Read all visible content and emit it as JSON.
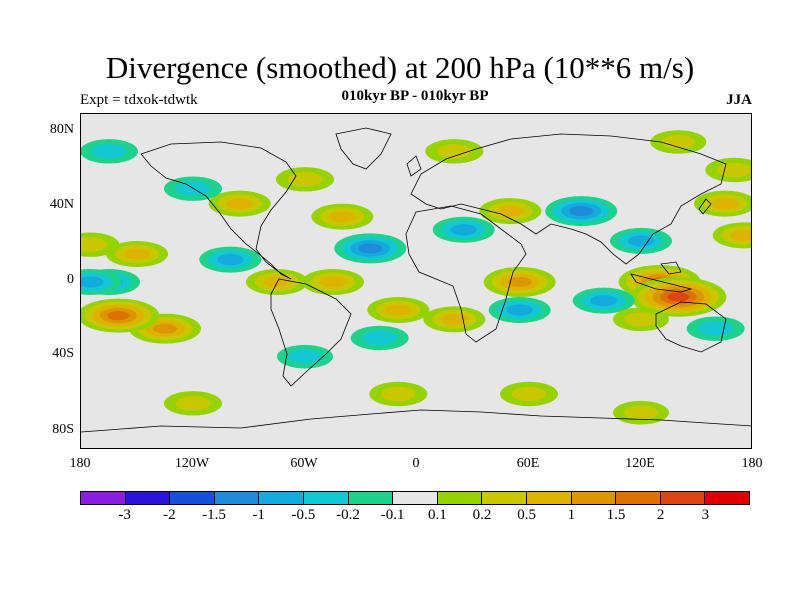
{
  "title": "Divergence (smoothed) at 200 hPa (10**6 m/s)",
  "subtitle": "010kyr BP - 010kyr BP",
  "experiment": "Expt = tdxok-tdwtk",
  "season": "JJA",
  "lat_labels": [
    "80N",
    "40N",
    "0",
    "40S",
    "80S"
  ],
  "lon_labels": [
    "180",
    "120W",
    "60W",
    "0",
    "60E",
    "120E",
    "180"
  ],
  "colorbar": {
    "labels": [
      "-3",
      "-2",
      "-1.5",
      "-1",
      "-0.5",
      "-0.2",
      "-0.1",
      "0.1",
      "0.2",
      "0.5",
      "1",
      "1.5",
      "2",
      "3"
    ],
    "colors": [
      "#8a1ee0",
      "#2a14d8",
      "#1550d8",
      "#1e8ad8",
      "#14aadc",
      "#14c8d2",
      "#1ed28e",
      "#e6e6e6",
      "#96d200",
      "#c8c800",
      "#dcb400",
      "#dc9600",
      "#dc7300",
      "#dc4614",
      "#dc0000"
    ]
  },
  "chart_data": {
    "type": "heatmap",
    "map": "global lat-lon",
    "variable": "Divergence (smoothed) at 200 hPa",
    "units": "10**6 m/s",
    "levels": [
      -3,
      -2,
      -1.5,
      -1,
      -0.5,
      -0.2,
      -0.1,
      0.1,
      0.2,
      0.5,
      1,
      1.5,
      2,
      3
    ],
    "x_range": [
      -180,
      180
    ],
    "y_range": [
      -90,
      90
    ],
    "features": [
      {
        "lon": 130,
        "lat": 0,
        "value": 1.5
      },
      {
        "lon": 140,
        "lat": -8,
        "value": 2.2
      },
      {
        "lon": 120,
        "lat": 22,
        "value": -0.5
      },
      {
        "lon": 165,
        "lat": 42,
        "value": 0.5
      },
      {
        "lon": 175,
        "lat": 25,
        "value": 0.5
      },
      {
        "lon": 88,
        "lat": 38,
        "value": -1
      },
      {
        "lon": 55,
        "lat": 0,
        "value": 1
      },
      {
        "lon": 50,
        "lat": 38,
        "value": 0.5
      },
      {
        "lon": 25,
        "lat": 28,
        "value": -0.5
      },
      {
        "lon": 20,
        "lat": -20,
        "value": 0.5
      },
      {
        "lon": 55,
        "lat": -15,
        "value": -0.5
      },
      {
        "lon": 100,
        "lat": -10,
        "value": -0.5
      },
      {
        "lon": 120,
        "lat": -20,
        "value": 0.2
      },
      {
        "lon": 160,
        "lat": -25,
        "value": -0.3
      },
      {
        "lon": -40,
        "lat": 35,
        "value": 0.5
      },
      {
        "lon": -25,
        "lat": 18,
        "value": -1
      },
      {
        "lon": -45,
        "lat": 0,
        "value": 0.5
      },
      {
        "lon": -10,
        "lat": -15,
        "value": 0.5
      },
      {
        "lon": -20,
        "lat": -30,
        "value": -0.3
      },
      {
        "lon": -100,
        "lat": 12,
        "value": -0.5
      },
      {
        "lon": -75,
        "lat": 0,
        "value": 0.5
      },
      {
        "lon": -95,
        "lat": 42,
        "value": 0.5
      },
      {
        "lon": -60,
        "lat": 55,
        "value": 0.3
      },
      {
        "lon": -150,
        "lat": 15,
        "value": 0.5
      },
      {
        "lon": -165,
        "lat": 0,
        "value": -0.5
      },
      {
        "lon": -135,
        "lat": -25,
        "value": 1
      },
      {
        "lon": -160,
        "lat": -18,
        "value": 1.5
      },
      {
        "lon": -175,
        "lat": 0,
        "value": -0.5
      },
      {
        "lon": -175,
        "lat": 20,
        "value": 0.3
      },
      {
        "lon": -120,
        "lat": 50,
        "value": -0.3
      },
      {
        "lon": -165,
        "lat": 70,
        "value": -0.3
      },
      {
        "lon": -60,
        "lat": -40,
        "value": -0.2
      },
      {
        "lon": -10,
        "lat": -60,
        "value": 0.3
      },
      {
        "lon": 60,
        "lat": -60,
        "value": 0.3
      },
      {
        "lon": 120,
        "lat": -70,
        "value": 0.2
      },
      {
        "lon": -120,
        "lat": -65,
        "value": 0.3
      },
      {
        "lon": 20,
        "lat": 70,
        "value": 0.3
      },
      {
        "lon": 140,
        "lat": 75,
        "value": 0.2
      },
      {
        "lon": 170,
        "lat": 60,
        "value": 0.3
      }
    ]
  }
}
